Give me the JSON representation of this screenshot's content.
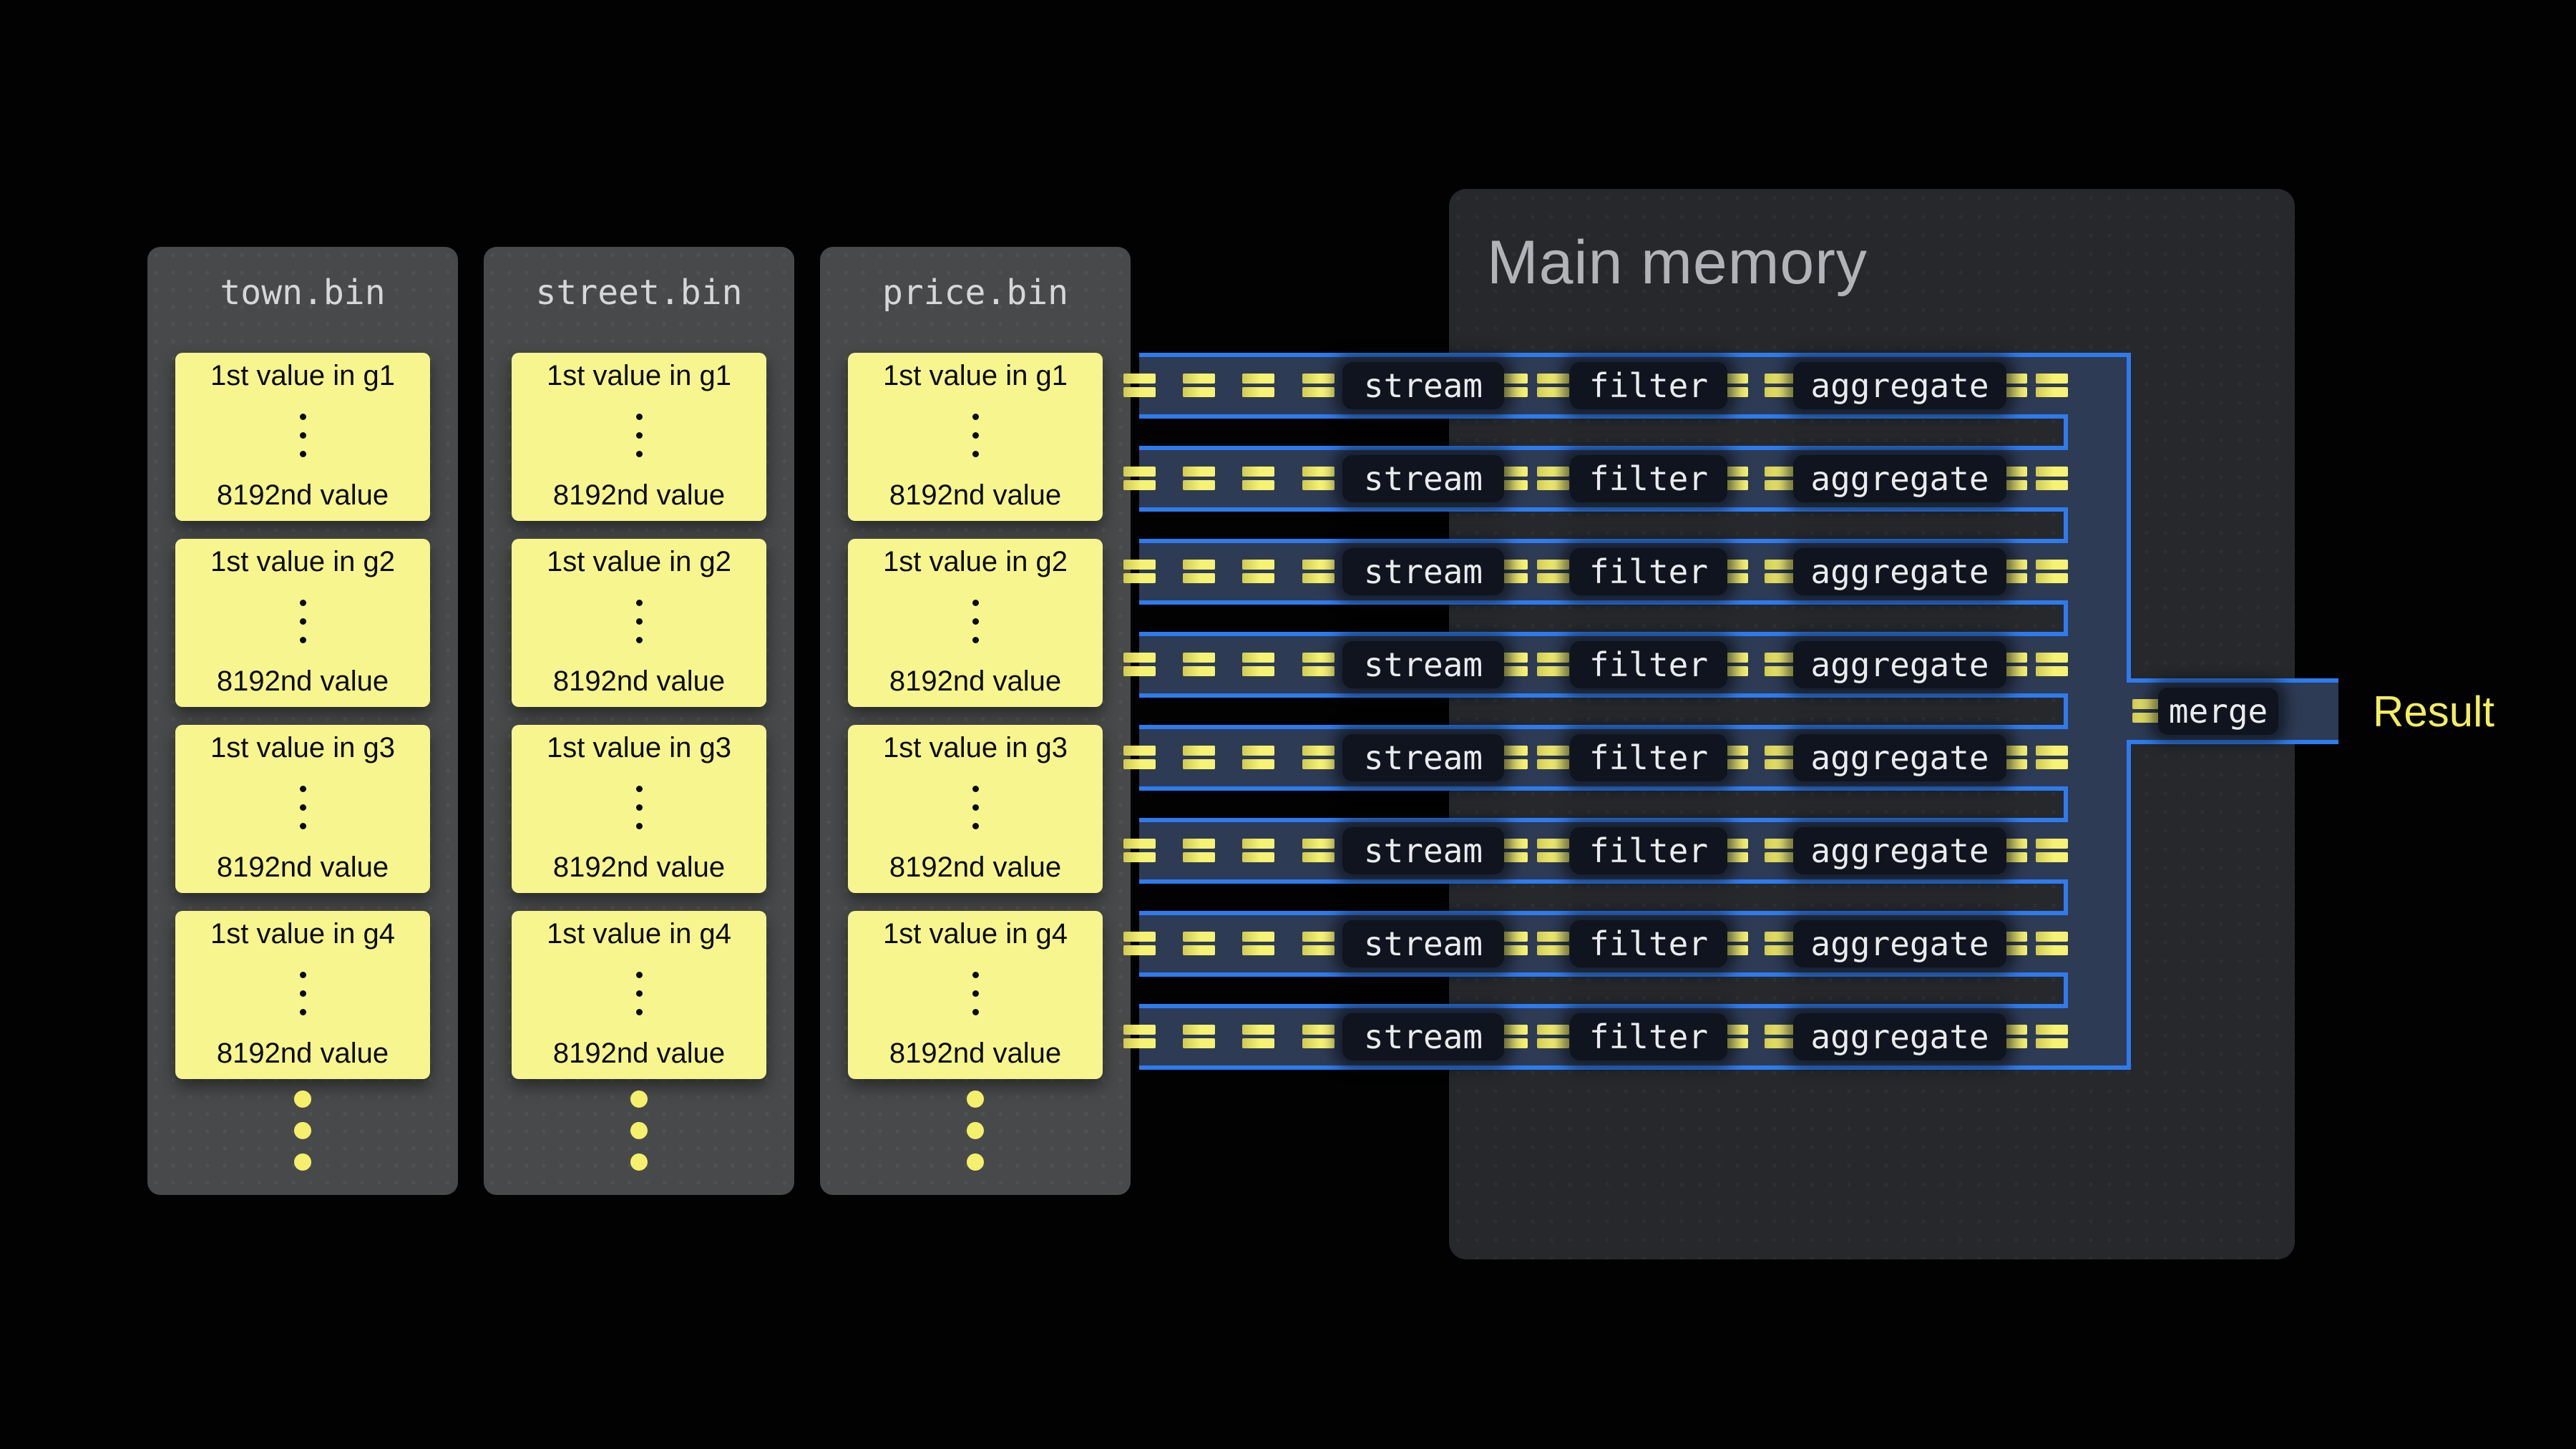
{
  "files": [
    {
      "name": "town.bin",
      "groups": [
        {
          "first_label": "1st value in g1",
          "last_label": "8192nd value"
        },
        {
          "first_label": "1st value in g2",
          "last_label": "8192nd value"
        },
        {
          "first_label": "1st value in g3",
          "last_label": "8192nd value"
        },
        {
          "first_label": "1st value in g4",
          "last_label": "8192nd value"
        }
      ]
    },
    {
      "name": "street.bin",
      "groups": [
        {
          "first_label": "1st value in g1",
          "last_label": "8192nd value"
        },
        {
          "first_label": "1st value in g2",
          "last_label": "8192nd value"
        },
        {
          "first_label": "1st value in g3",
          "last_label": "8192nd value"
        },
        {
          "first_label": "1st value in g4",
          "last_label": "8192nd value"
        }
      ]
    },
    {
      "name": "price.bin",
      "groups": [
        {
          "first_label": "1st value in g1",
          "last_label": "8192nd value"
        },
        {
          "first_label": "1st value in g2",
          "last_label": "8192nd value"
        },
        {
          "first_label": "1st value in g3",
          "last_label": "8192nd value"
        },
        {
          "first_label": "1st value in g4",
          "last_label": "8192nd value"
        }
      ]
    }
  ],
  "memory": {
    "title": "Main memory"
  },
  "pipeline": {
    "row_count": 8,
    "stage_labels": [
      "stream",
      "filter",
      "aggregate"
    ],
    "merge_label": "merge",
    "result_label": "Result"
  },
  "colors": {
    "pipe_fill": "#2e3b55",
    "pipe_border": "#2e7bee",
    "equals_yellow": "#f6f273",
    "group_fill": "#f7f58e",
    "file_panel_bg": "#48494a",
    "memory_bg": "#26282c",
    "stage_box_bg": "#0f141e",
    "result_text": "#f2ee60"
  }
}
